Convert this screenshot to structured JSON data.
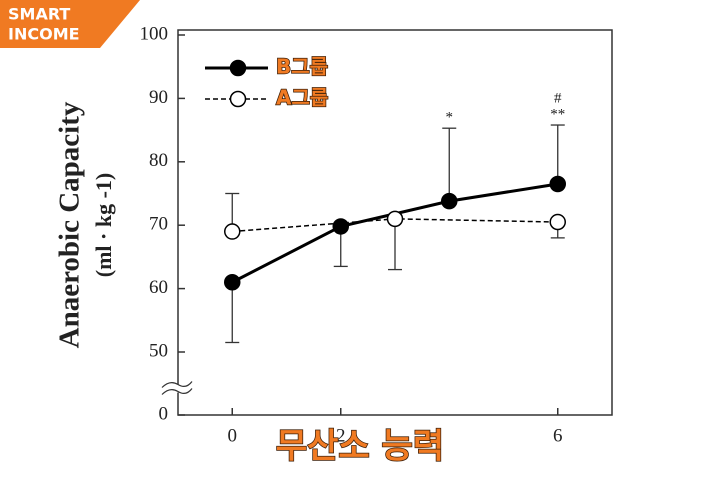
{
  "logo": [
    "SMART",
    "INCOME"
  ],
  "chart_data": {
    "type": "line",
    "y_label": "Anaerobic Capacity",
    "y_unit": "(ml · kg -1)",
    "caption": "무산소 능력",
    "xlim": [
      -1,
      7
    ],
    "xticks": [
      0,
      2,
      6
    ],
    "ylim": [
      0,
      100
    ],
    "yticks": [
      0,
      50,
      60,
      70,
      80,
      90,
      100
    ],
    "y_break": [
      0,
      50
    ],
    "legend": "upper left",
    "series": [
      {
        "name": "B그룹",
        "color": "#000000",
        "marker_fill": "#000000",
        "dash": false,
        "x": [
          0,
          2,
          4,
          6
        ],
        "values": [
          61,
          69.8,
          73.8,
          76.5
        ],
        "error_ends": [
          51.5,
          63.5,
          85.3,
          85.8
        ]
      },
      {
        "name": "A그룹",
        "color": "#000000",
        "marker_fill": "#ffffff",
        "dash": true,
        "x": [
          0,
          3,
          6
        ],
        "values": [
          69,
          71,
          70.5
        ],
        "error_ends": [
          75,
          63,
          68
        ]
      }
    ],
    "annotations": [
      {
        "x": 4,
        "text": "*"
      },
      {
        "x": 6,
        "text": "**"
      },
      {
        "x": 6,
        "text": "#"
      }
    ]
  }
}
